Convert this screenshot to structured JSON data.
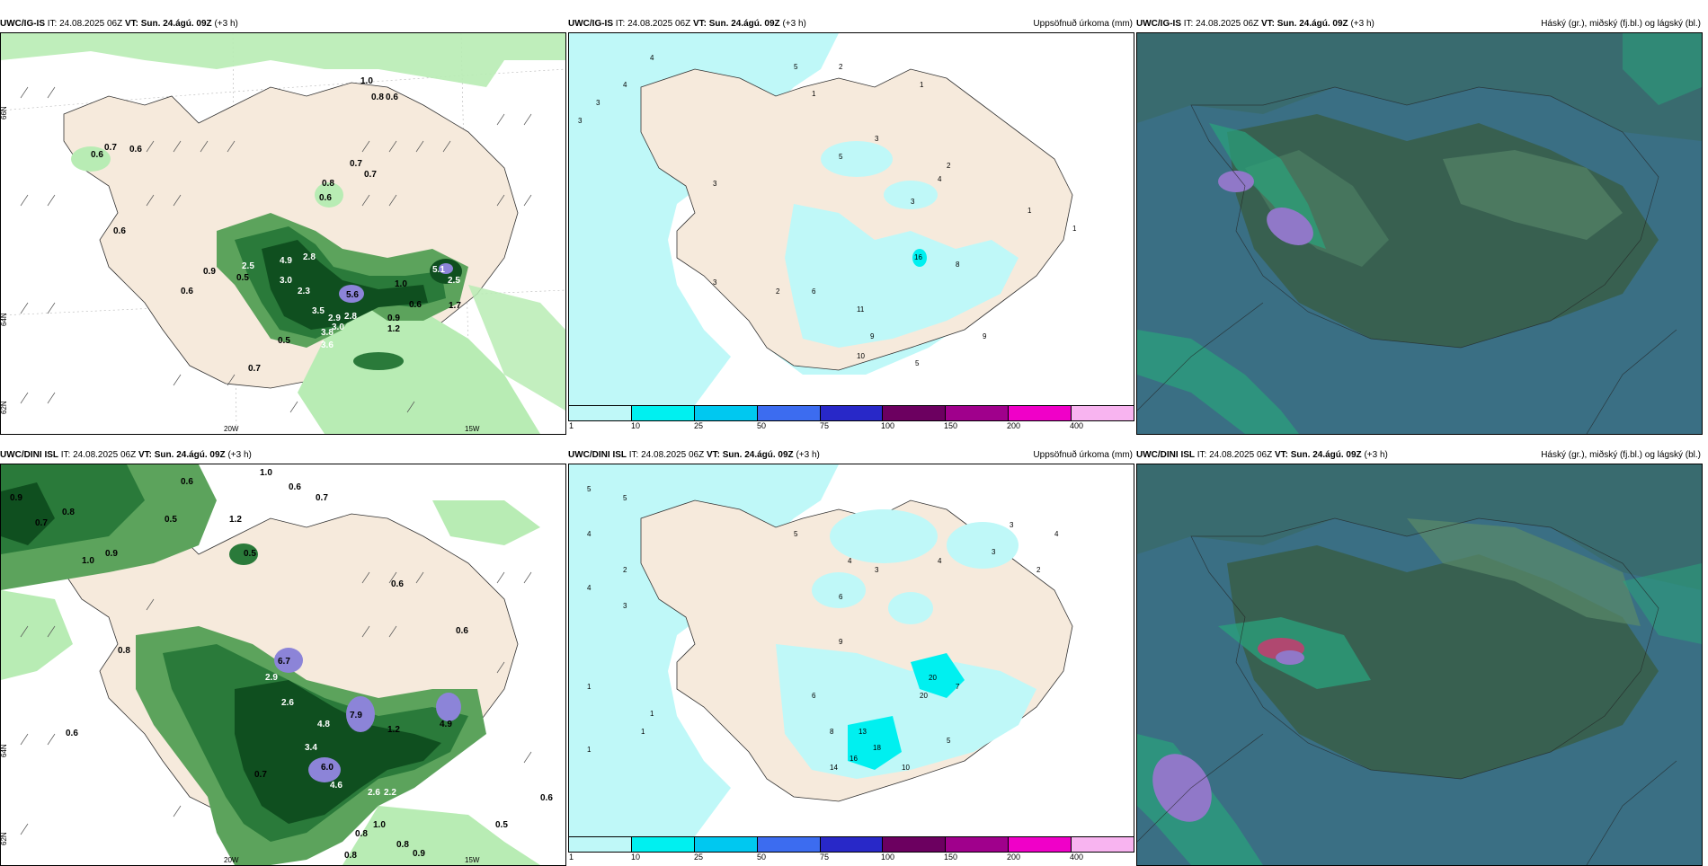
{
  "rows": [
    {
      "model": "UWC/IG-IS",
      "it_label": "IT:",
      "it_value": "24.08.2025 06Z",
      "vt_label": "VT:",
      "vt_value": "Sun. 24.ágú. 09Z",
      "lead": "(+3 h)"
    },
    {
      "model": "UWC/DINI ISL",
      "it_label": "IT:",
      "it_value": "24.08.2025 06Z",
      "vt_label": "VT:",
      "vt_value": "Sun. 24.ágú. 09Z",
      "lead": "(+3 h)"
    }
  ],
  "panel_titles": {
    "precip": "Uppsöfnuð úrkoma (mm)",
    "clouds": "Háský (gr.), miðský (fj.bl.) og lágský (bl.)"
  },
  "axis_labels": {
    "lat_left_top": "66N",
    "lat_left_mid": "64N",
    "lat_left_bottom": "62N",
    "lat_right_top": "66N",
    "lat_right_mid": "64N",
    "lon_20w": "20W",
    "lon_15w": "15W"
  },
  "colorbar": {
    "ticks": [
      "1",
      "10",
      "25",
      "50",
      "75",
      "100",
      "150",
      "200",
      "400"
    ],
    "colors": [
      "#bff8f8",
      "#00f0f0",
      "#00c8f0",
      "#3c6cf0",
      "#2828c8",
      "#6c0060",
      "#a0008c",
      "#f000c8",
      "#f8b4f0"
    ]
  },
  "colors": {
    "land": "#f6eadc",
    "sea_precip": "#bff8f8",
    "green_light": "#b8ecb4",
    "green_mid": "#5ca35c",
    "green_dark": "#0f4f1f",
    "purple": "#8c84d8",
    "cloud_sea": "#3a6f84",
    "cloud_land": "#386050",
    "cloud_green": "#2aa27c",
    "cloud_purple": "#9078c8"
  },
  "map_labels": {
    "r1_wind": [
      "1.0",
      "0.8",
      "0.6",
      "0.7",
      "0.6",
      "0.6",
      "0.8",
      "0.7",
      "0.7",
      "0.6",
      "0.6",
      "0.9",
      "0.5",
      "2.5",
      "4.9",
      "2.8",
      "3.0",
      "2.3",
      "5.6",
      "3.5",
      "2.9",
      "2.8",
      "3.8",
      "3.0",
      "3.6",
      "1.0",
      "0.6",
      "5.1",
      "2.5",
      "1.7",
      "0.9",
      "1.2",
      "0.5",
      "0.7",
      "0.6"
    ],
    "r1_precip": [
      "4",
      "5",
      "3",
      "3",
      "4",
      "3",
      "2",
      "1",
      "1",
      "5",
      "3",
      "6",
      "2",
      "3",
      "2",
      "4",
      "3",
      "16",
      "8",
      "11",
      "10",
      "9",
      "5",
      "9",
      "1",
      "1"
    ],
    "r2_wind": [
      "0.6",
      "1.0",
      "0.9",
      "0.7",
      "0.8",
      "0.6",
      "1.0",
      "0.5",
      "0.9",
      "0.5",
      "0.7",
      "0.6",
      "0.8",
      "1.2",
      "6.7",
      "2.9",
      "2.6",
      "4.8",
      "7.9",
      "6.0",
      "4.6",
      "3.4",
      "2.6",
      "2.2",
      "0.8",
      "1.0",
      "0.5",
      "0.6",
      "0.8",
      "0.9",
      "0.8",
      "0.6",
      "4.9",
      "1.2",
      "0.6",
      "0.7"
    ],
    "r2_precip": [
      "5",
      "5",
      "4",
      "3",
      "4",
      "2",
      "1",
      "1",
      "3",
      "4",
      "6",
      "5",
      "4",
      "8",
      "7",
      "6",
      "9",
      "3",
      "4",
      "2",
      "3",
      "20",
      "20",
      "13",
      "18",
      "16",
      "5",
      "10",
      "14",
      "1",
      "1"
    ]
  }
}
